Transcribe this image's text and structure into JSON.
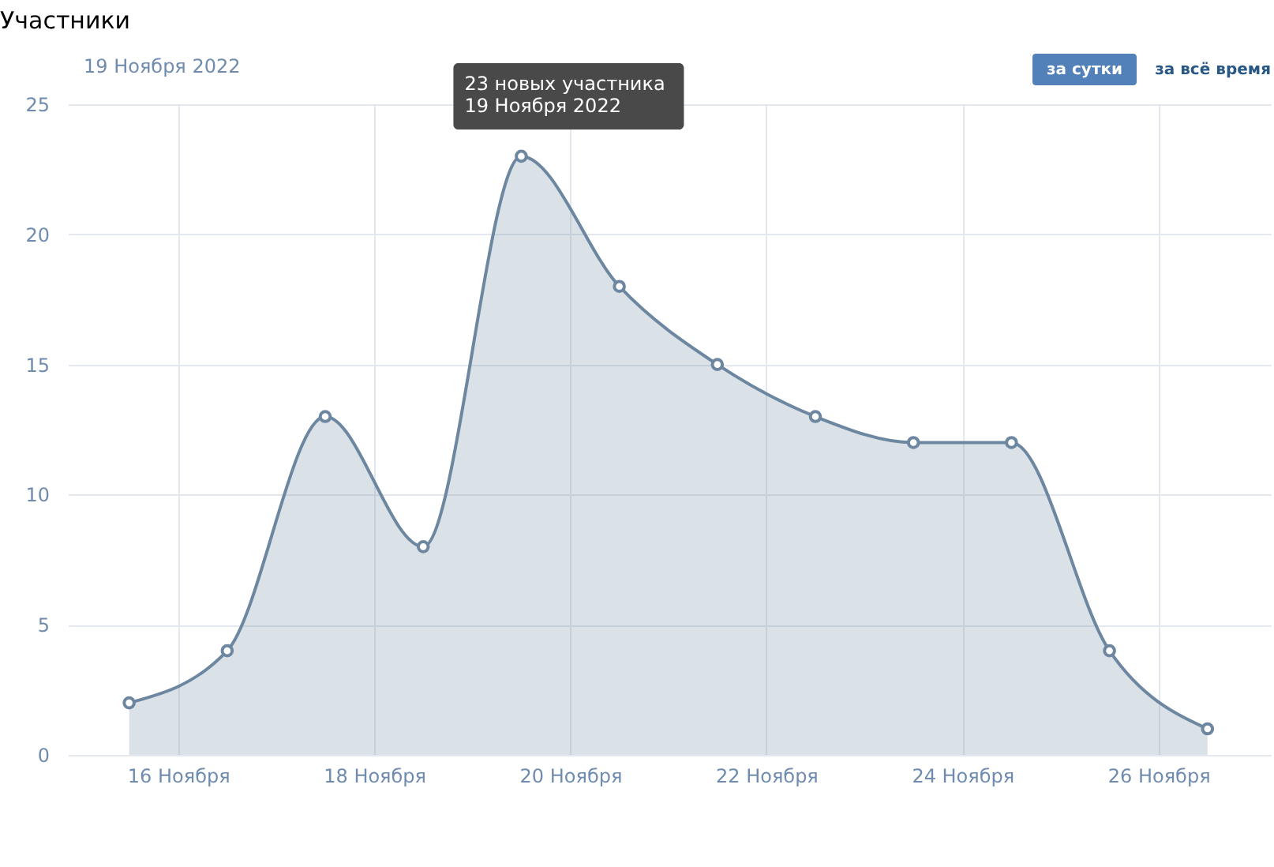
{
  "chart_data": {
    "type": "area",
    "title": "Участники",
    "subtitle": "19 Ноября 2022",
    "x": [
      "2022-11-15T12:00",
      "2022-11-16T12:00",
      "2022-11-17T12:00",
      "2022-11-18T12:00",
      "2022-11-19T12:00",
      "2022-11-20T12:00",
      "2022-11-21T12:00",
      "2022-11-22T12:00",
      "2022-11-23T12:00",
      "2022-11-24T12:00",
      "2022-11-25T12:00",
      "2022-11-26T12:00"
    ],
    "series": [
      {
        "color": "#6d87a1",
        "values": [
          2,
          4,
          13,
          8,
          23,
          18,
          15,
          13,
          12,
          12,
          4,
          1
        ]
      }
    ],
    "xlim": [
      "2022-11-14T21:00",
      "2022-11-27T03:30"
    ],
    "xticks": [
      {
        "value": "2022-11-16T00:00",
        "label": "16 Ноября"
      },
      {
        "value": "2022-11-18T00:00",
        "label": "18 Ноября"
      },
      {
        "value": "2022-11-20T00:00",
        "label": "20 Ноября"
      },
      {
        "value": "2022-11-22T00:00",
        "label": "22 Ноября"
      },
      {
        "value": "2022-11-24T00:00",
        "label": "24 Ноября"
      },
      {
        "value": "2022-11-26T00:00",
        "label": "26 Ноября"
      }
    ],
    "ylim": [
      0,
      25
    ],
    "yticks": [
      0,
      5,
      10,
      15,
      20,
      25
    ],
    "grid": true,
    "marker": "circle",
    "line_style": "solid",
    "annotations": [
      "за сутки",
      "за всё время",
      {
        "text": "23 новых участника\n19 Ноября 2022",
        "x": "2022-11-19T12:00",
        "y": 23
      }
    ]
  }
}
